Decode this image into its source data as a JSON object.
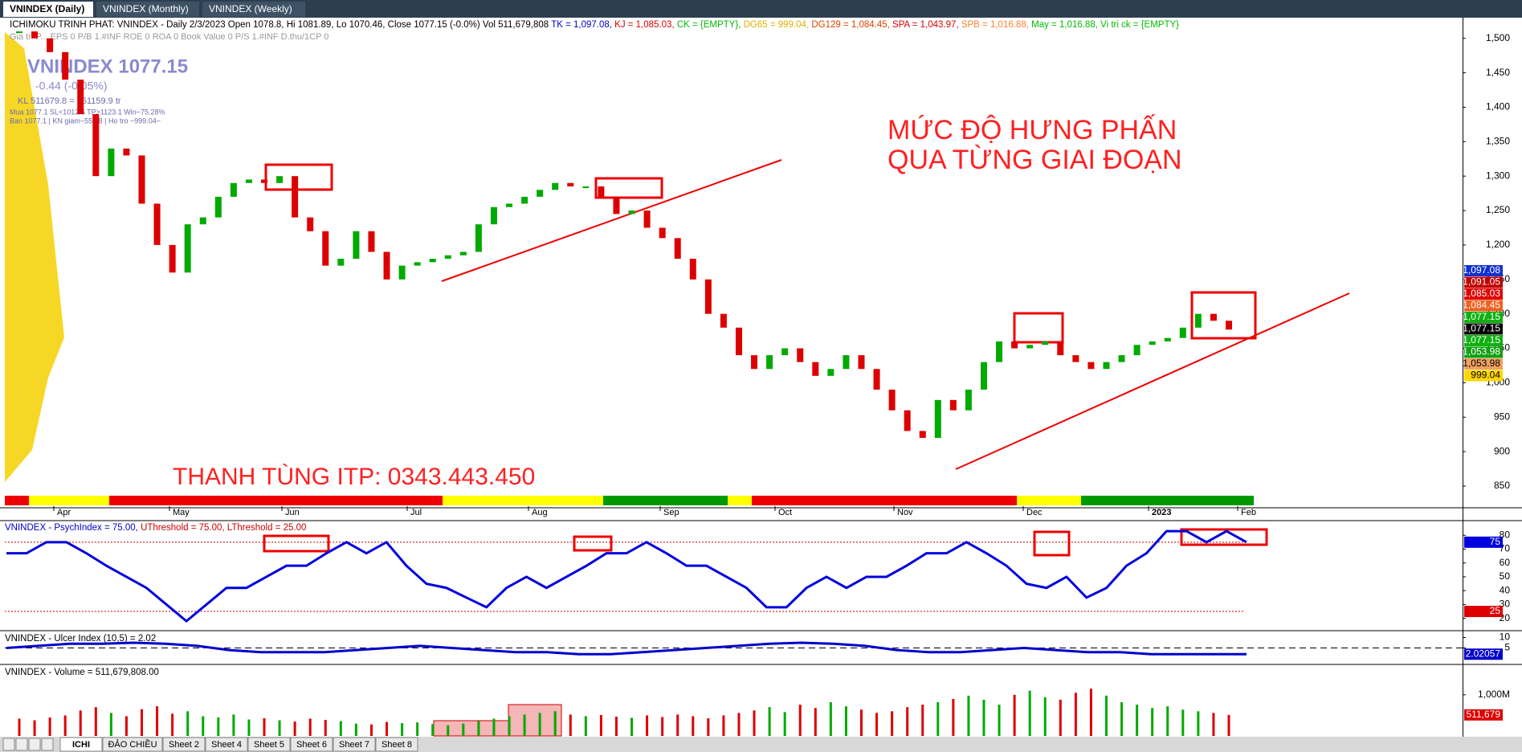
{
  "tabs": [
    "VNINDEX (Daily)",
    "VNINDEX (Monthly)",
    "VNINDEX (Weekly)"
  ],
  "header": [
    {
      "text": "ICHIMOKU TRINH PHAT: VNINDEX - Daily 2/3/2023 Open 1078.8, Hi 1081.89, Lo 1070.46, Close 1077.15 (-0.0%) Vol 511,679,808",
      "color": "#000000"
    },
    {
      "text": "TK = 1,097.08,",
      "color": "#0000cc"
    },
    {
      "text": "KJ = 1,085.03,",
      "color": "#dd0000"
    },
    {
      "text": "CK = {EMPTY},",
      "color": "#00bb00"
    },
    {
      "text": "DG65 = 999.04,",
      "color": "#e0b000"
    },
    {
      "text": "DG129 = 1,084.45,",
      "color": "#e04000"
    },
    {
      "text": "SPA = 1,043.97,",
      "color": "#dd0000"
    },
    {
      "text": "SPB = 1,016.88,",
      "color": "#ff8030"
    },
    {
      "text": "May = 1,016.88,",
      "color": "#00bb00"
    },
    {
      "text": "Vi tri ck = {EMPTY}",
      "color": "#00bb00"
    }
  ],
  "info_line": "Gia tri P...  EPS 0     P/B 1.#INF ROE 0     ROA 0     Book Value 0     P/S 1.#INF D.thu/1CP 0",
  "overlay": [
    "VNINDEX 1077.15",
    "-0.44 (-0.05%)",
    "KL 511679.8 = 551159.9 tr",
    "Mua 1077.1   SL<1012.5   TP>1123.1   Win~75.28%",
    "Ban 1077.1 | KN giam~55.18 | Ho tro ~999.04~"
  ],
  "annotations": [
    "MỨC ĐỘ HƯNG PHẤN",
    "QUA TỪNG GIAI ĐOẠN",
    "THANH TÙNG ITP: 0343.443.450"
  ],
  "sheet_tabs": [
    "ICHI",
    "ĐẢO CHIỀU",
    "Sheet 2",
    "Sheet 4",
    "Sheet 5",
    "Sheet 6",
    "Sheet 7",
    "Sheet 8"
  ],
  "chart_data": [
    {
      "type": "candlestick",
      "x_labels": [
        "Apr",
        "May",
        "Jun",
        "Jul",
        "Aug",
        "Sep",
        "Oct",
        "Nov",
        "Dec",
        "2023",
        "Feb"
      ],
      "values": [
        1510,
        1500,
        1480,
        1440,
        1390,
        1300,
        1340,
        1330,
        1260,
        1200,
        1160,
        1230,
        1240,
        1270,
        1290,
        1295,
        1290,
        1300,
        1240,
        1220,
        1170,
        1180,
        1220,
        1190,
        1150,
        1170,
        1175,
        1180,
        1185,
        1190,
        1230,
        1255,
        1260,
        1270,
        1280,
        1290,
        1285,
        1285,
        1270,
        1245,
        1250,
        1225,
        1210,
        1180,
        1150,
        1100,
        1080,
        1040,
        1020,
        1040,
        1050,
        1030,
        1010,
        1020,
        1040,
        1020,
        990,
        960,
        930,
        920,
        975,
        960,
        990,
        1030,
        1060,
        1050,
        1055,
        1060,
        1040,
        1030,
        1020,
        1030,
        1040,
        1055,
        1060,
        1065,
        1080,
        1100,
        1090,
        1077.15
      ],
      "up_color": "#00aa00",
      "down_color": "#dd0000",
      "ylim": [
        836,
        1530
      ],
      "yticks": [
        {
          "value": 1500,
          "label": "1,500"
        },
        {
          "value": 1450,
          "label": "1,450"
        },
        {
          "value": 1400,
          "label": "1,400"
        },
        {
          "value": 1350,
          "label": "1,350"
        },
        {
          "value": 1300,
          "label": "1,300"
        },
        {
          "value": 1250,
          "label": "1,250"
        },
        {
          "value": 1200,
          "label": "1,200"
        },
        {
          "value": 1150,
          "label": "1,150"
        },
        {
          "value": 1100,
          "label": "1,100"
        },
        {
          "value": 1050,
          "label": "1,050"
        },
        {
          "value": 1000,
          "label": "1,000"
        },
        950,
        900,
        850
      ],
      "price_labels": [
        {
          "value": 1097.08,
          "label": "1,097.08",
          "color": "#1030d0"
        },
        {
          "value": 1091.05,
          "label": "1,091.05",
          "color": "#c00000"
        },
        {
          "value": 1085.03,
          "label": "1,085.03",
          "color": "#e00000"
        },
        {
          "value": 1084.45,
          "label": "1,084.45",
          "color": "#f06020"
        },
        {
          "value": 1077.15,
          "label": "1,077.15",
          "color": "#10b010"
        },
        {
          "value": 1077.15,
          "label": "1,077.15",
          "color": "#000000"
        },
        {
          "value": 1077.15,
          "label": "1,077.15",
          "color": "#10b010"
        },
        {
          "value": 1053.98,
          "label": "1,053.98",
          "color": "#10a010"
        },
        {
          "value": 1053.98,
          "label": "1,053.98",
          "color": "#f0a060"
        },
        {
          "value": 999.04,
          "label": "999.04",
          "color": "#ffd700"
        }
      ]
    },
    {
      "type": "line",
      "title_parts": [
        {
          "text": "VNINDEX - PsychIndex = 75.00,",
          "color": "#0000cc"
        },
        {
          "text": "UThreshold = 75.00,",
          "color": "#cc0000"
        },
        {
          "text": "LThreshold = 25.00",
          "color": "#cc0000"
        }
      ],
      "values": [
        67,
        67,
        75,
        75,
        67,
        58,
        50,
        42,
        30,
        18,
        30,
        42,
        42,
        50,
        58,
        58,
        67,
        75,
        67,
        75,
        58,
        45,
        42,
        35,
        28,
        42,
        50,
        42,
        50,
        58,
        67,
        67,
        75,
        67,
        58,
        58,
        50,
        42,
        28,
        28,
        42,
        50,
        42,
        50,
        50,
        58,
        67,
        67,
        75,
        67,
        58,
        45,
        42,
        50,
        35,
        42,
        58,
        67,
        83,
        83,
        75,
        83,
        75
      ],
      "color": "#0000dd",
      "ylim": [
        14,
        90
      ],
      "yticks": [
        20,
        30,
        40,
        50,
        60,
        70,
        80
      ],
      "thresholds": [
        75,
        25
      ],
      "axis_labels": [
        {
          "value": 75,
          "label": "75",
          "color": "#0000dd"
        },
        {
          "value": 25,
          "label": "25",
          "color": "#dd0000"
        }
      ]
    },
    {
      "type": "line",
      "title": "VNINDEX - Ulcer Index (10,5) = 2.02",
      "values": [
        5,
        6,
        7,
        7,
        7.5,
        7,
        6,
        4,
        3,
        3,
        3,
        4,
        5,
        6,
        5,
        4,
        3,
        3,
        2,
        2,
        3,
        4,
        5,
        6,
        7,
        7.5,
        7,
        6,
        4,
        3,
        3,
        4,
        5,
        4,
        3,
        3,
        2,
        2,
        2,
        2.02
      ],
      "color": "#0000cc",
      "ylim": [
        -2.5,
        12.5
      ],
      "yticks": [
        5,
        10
      ],
      "reference_line": 5,
      "axis_labels": [
        {
          "value": 2.02057,
          "label": "2.02057",
          "color": "#0000cc"
        }
      ]
    },
    {
      "type": "bar",
      "title": "VNINDEX - Volume = 511,679,808.00",
      "values": [
        420,
        380,
        450,
        500,
        620,
        700,
        560,
        480,
        650,
        720,
        540,
        600,
        480,
        450,
        520,
        400,
        430,
        380,
        350,
        420,
        390,
        360,
        300,
        280,
        340,
        310,
        330,
        290,
        260,
        300,
        360,
        420,
        480,
        520,
        560,
        600,
        520,
        480,
        510,
        470,
        440,
        500,
        460,
        520,
        480,
        430,
        500,
        560,
        620,
        700,
        580,
        760,
        680,
        820,
        720,
        640,
        560,
        600,
        700,
        760,
        820,
        900,
        980,
        880,
        760,
        1000,
        1100,
        940,
        880,
        1050,
        1150,
        980,
        820,
        760,
        680,
        720,
        640,
        600,
        560,
        511.679
      ],
      "ylim": [
        0,
        1700
      ],
      "yticks": [
        {
          "value": 1000,
          "label": "1,000M"
        }
      ],
      "axis_labels": [
        {
          "value": 511.679,
          "label": "511,679",
          "color": "#dd0000"
        }
      ]
    }
  ]
}
